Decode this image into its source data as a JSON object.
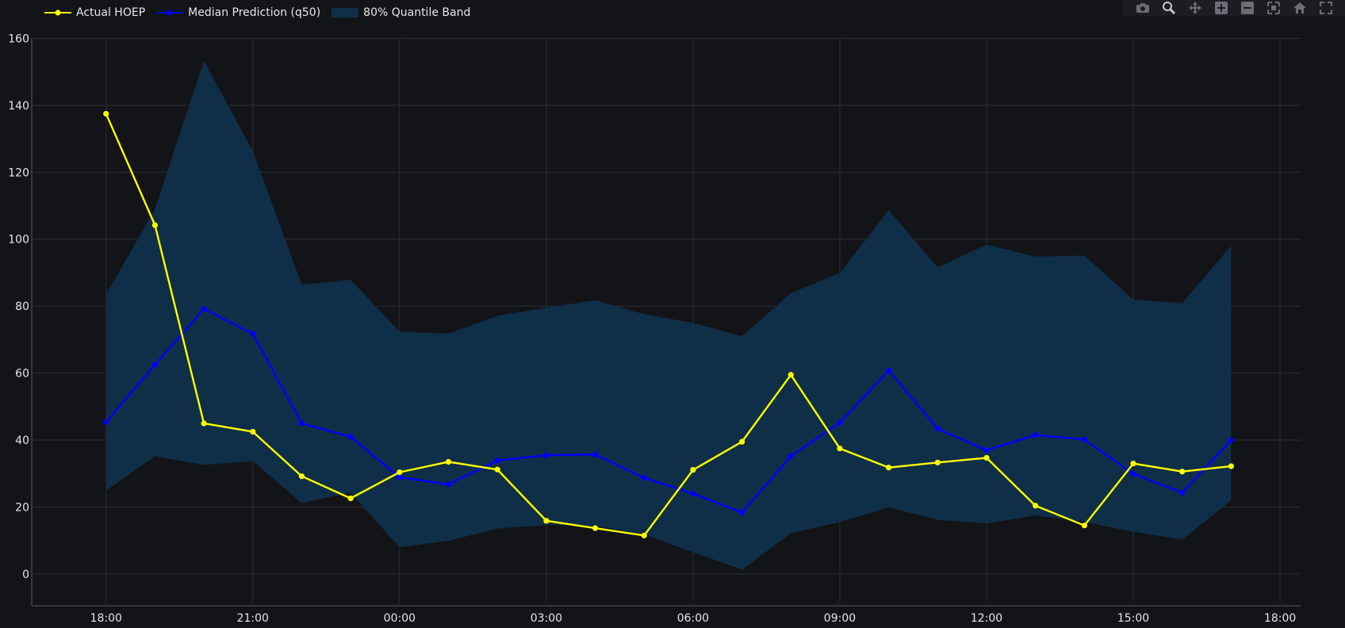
{
  "legend": {
    "actual": "Actual HOEP",
    "median": "Median Prediction (q50)",
    "band": "80% Quantile Band"
  },
  "colors": {
    "background": "#131418",
    "grid": "#2b2e33",
    "actual": "#ffff00",
    "median": "#0000ff",
    "band": "#0f2f48"
  },
  "modebar": {
    "icons": [
      "camera-icon",
      "zoom-icon",
      "pan-icon",
      "zoom-in-icon",
      "zoom-out-icon",
      "autoscale-icon",
      "home-icon",
      "fullscreen-icon"
    ]
  },
  "chart_data": {
    "type": "line",
    "x": [
      0,
      1,
      2,
      3,
      4,
      5,
      6,
      7,
      8,
      9,
      10,
      11,
      12,
      13,
      14,
      15,
      16,
      17,
      18,
      19,
      20,
      21,
      22,
      23
    ],
    "xticks": [
      "18:00",
      "21:00",
      "00:00",
      "03:00",
      "06:00",
      "09:00",
      "12:00",
      "15:00",
      "18:00"
    ],
    "xtick_positions": [
      0,
      3,
      6,
      9,
      12,
      15,
      18,
      21,
      24
    ],
    "xlim": [
      -1.52,
      24.42
    ],
    "yticks": [
      0,
      20,
      40,
      60,
      80,
      100,
      120,
      140,
      160
    ],
    "ylim": [
      -9.5,
      162
    ],
    "grid": true,
    "legend_position": "top-left",
    "series": [
      {
        "name": "Actual HOEP",
        "values": [
          137.5,
          104.2,
          45.0,
          42.5,
          29.2,
          22.6,
          30.4,
          33.5,
          31.2,
          15.9,
          13.7,
          11.5,
          31.1,
          39.5,
          59.5,
          37.5,
          31.8,
          33.3,
          34.7,
          20.4,
          14.5,
          33.0,
          30.6,
          32.2
        ]
      },
      {
        "name": "Median Prediction (q50)",
        "values": [
          45.4,
          62.5,
          79.2,
          71.8,
          45.0,
          41.0,
          28.9,
          26.8,
          33.9,
          35.5,
          35.7,
          28.7,
          24.0,
          18.4,
          35.2,
          45.2,
          60.8,
          43.4,
          37.0,
          41.5,
          40.2,
          29.9,
          24.3,
          40.0
        ]
      },
      {
        "name": "80% Quantile Band",
        "upper": [
          83.5,
          109.0,
          153.2,
          126.3,
          86.4,
          87.9,
          72.4,
          71.8,
          77.1,
          79.5,
          81.8,
          77.6,
          75.0,
          71.0,
          83.9,
          89.9,
          108.7,
          91.6,
          98.4,
          94.8,
          95.1,
          82.0,
          80.9,
          98.0
        ],
        "lower": [
          25.0,
          35.2,
          32.6,
          33.7,
          21.2,
          24.3,
          8.0,
          9.9,
          13.6,
          14.7,
          14.4,
          11.8,
          6.5,
          1.3,
          12.2,
          15.5,
          19.9,
          16.2,
          15.1,
          17.5,
          15.6,
          12.6,
          10.3,
          22.0
        ]
      }
    ]
  }
}
